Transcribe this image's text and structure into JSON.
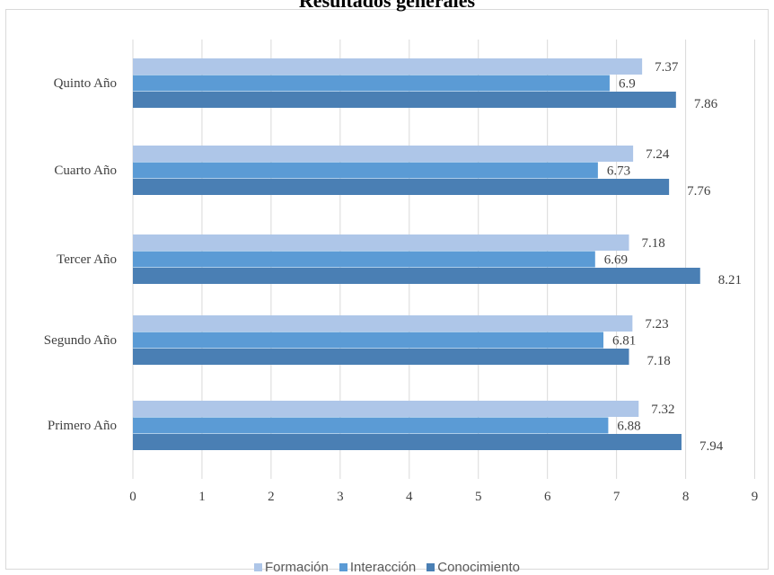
{
  "chart_data": {
    "type": "bar",
    "orientation": "horizontal",
    "title": "Resultados generales",
    "categories": [
      "Primero Año",
      "Segundo Año",
      "Tercer Año",
      "Cuarto Año",
      "Quinto Año"
    ],
    "series": [
      {
        "name": "Formación",
        "color": "#aec6e8",
        "values": [
          7.32,
          7.23,
          7.18,
          7.24,
          7.37
        ]
      },
      {
        "name": "Interacción",
        "color": "#5b9bd5",
        "values": [
          6.88,
          6.81,
          6.69,
          6.73,
          6.9
        ]
      },
      {
        "name": "Conocimiento",
        "color": "#4a7fb4",
        "values": [
          7.94,
          7.18,
          8.21,
          7.76,
          7.86
        ]
      }
    ],
    "data_labels": [
      [
        "7.32",
        "7.23",
        "7.18",
        "7.24",
        "7.37"
      ],
      [
        "6.88",
        "6.81",
        "6.69",
        "6.73",
        "6.9"
      ],
      [
        "7.94",
        "7.18",
        "8.21",
        "7.76",
        "7.86"
      ]
    ],
    "xlim": [
      0,
      9
    ],
    "xticks": [
      "0",
      "1",
      "2",
      "3",
      "4",
      "5",
      "6",
      "7",
      "8",
      "9"
    ],
    "xlabel": "",
    "ylabel": "",
    "grid": "vertical",
    "legend_position": "bottom"
  }
}
